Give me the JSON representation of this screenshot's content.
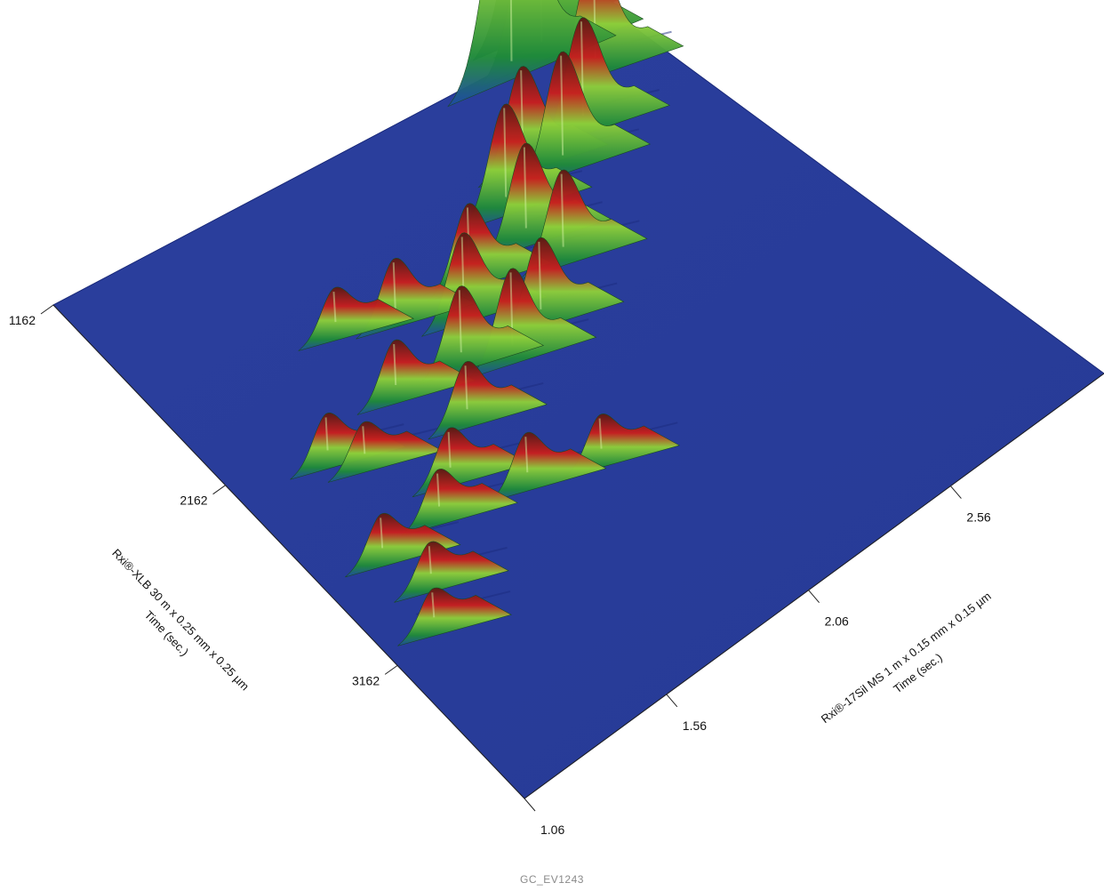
{
  "figure_id": "GC_EV1243",
  "chart_data": {
    "type": "surface-3d",
    "title": "",
    "x_axis": {
      "label_line1": "Rxi®-XLB 30 m x 0.25 mm x  0.25 µm",
      "label_line2": "Time (sec.)",
      "ticks": [
        1162,
        2162,
        3162
      ],
      "range": [
        1162,
        3900
      ]
    },
    "y_axis": {
      "label_line1": "Rxi®-17Sil MS 1 m x 0.15 mm x 0.15 µm",
      "label_line2": "Time (sec.)",
      "ticks": [
        1.06,
        1.56,
        2.06,
        2.56
      ],
      "range": [
        1.06,
        3.1
      ]
    },
    "colors": {
      "plane": "#2a3d9c",
      "plane_edge": "#1a2a7a",
      "low": "#1f8a3a",
      "mid": "#8fcf3a",
      "high": "#c81f1f",
      "peak": "#5a1a14"
    },
    "peaks": [
      {
        "t1": 1380,
        "t2": 2.62,
        "height": 0.86
      },
      {
        "t1": 1470,
        "t2": 2.48,
        "height": 0.88
      },
      {
        "t1": 1480,
        "t2": 2.58,
        "height": 0.8
      },
      {
        "t1": 1660,
        "t2": 2.66,
        "height": 0.42
      },
      {
        "t1": 1820,
        "t2": 2.52,
        "height": 0.38
      },
      {
        "t1": 1900,
        "t2": 2.4,
        "height": 0.4
      },
      {
        "t1": 1800,
        "t2": 2.32,
        "height": 0.34
      },
      {
        "t1": 1900,
        "t2": 2.2,
        "height": 0.36
      },
      {
        "t1": 2050,
        "t2": 2.18,
        "height": 0.33
      },
      {
        "t1": 2200,
        "t2": 2.22,
        "height": 0.3
      },
      {
        "t1": 2350,
        "t2": 2.05,
        "height": 0.28
      },
      {
        "t1": 2400,
        "t2": 1.92,
        "height": 0.3
      },
      {
        "t1": 2300,
        "t2": 1.8,
        "height": 0.26
      },
      {
        "t1": 2150,
        "t2": 1.9,
        "height": 0.28
      },
      {
        "t1": 2050,
        "t2": 1.98,
        "height": 0.26
      },
      {
        "t1": 2000,
        "t2": 1.75,
        "height": 0.2
      },
      {
        "t1": 2250,
        "t2": 1.6,
        "height": 0.18
      },
      {
        "t1": 2500,
        "t2": 1.7,
        "height": 0.19
      },
      {
        "t1": 2650,
        "t2": 1.55,
        "height": 0.16
      },
      {
        "t1": 2750,
        "t2": 1.45,
        "height": 0.15
      },
      {
        "t1": 2850,
        "t2": 1.7,
        "height": 0.16
      },
      {
        "t1": 2950,
        "t2": 1.9,
        "height": 0.14
      },
      {
        "t1": 1900,
        "t2": 1.6,
        "height": 0.14
      },
      {
        "t1": 2300,
        "t2": 1.33,
        "height": 0.15
      },
      {
        "t1": 2750,
        "t2": 1.25,
        "height": 0.14
      },
      {
        "t1": 2400,
        "t2": 1.4,
        "height": 0.13
      },
      {
        "t1": 2950,
        "t2": 1.3,
        "height": 0.13
      },
      {
        "t1": 3100,
        "t2": 1.22,
        "height": 0.12
      }
    ]
  }
}
